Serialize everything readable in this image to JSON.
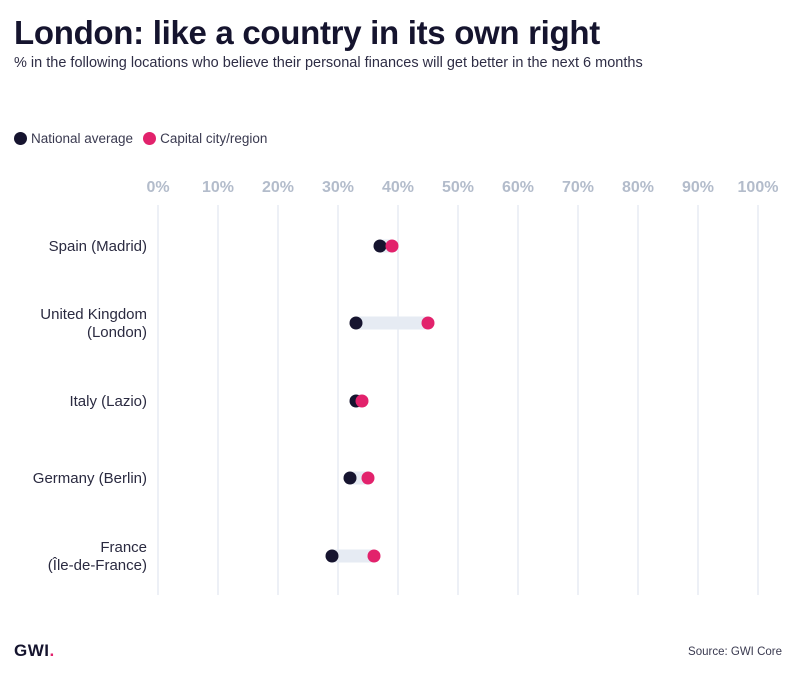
{
  "header": {
    "title": "London: like a country in its own right",
    "subtitle": "% in the following locations who believe their personal finances will get better in the next 6 months"
  },
  "footer": {
    "logo_text": "GWI",
    "logo_dot": ".",
    "source": "Source: GWI Core"
  },
  "colors": {
    "national": "#16142f",
    "capital": "#e2226c",
    "connector": "#e6ebf3",
    "gridline": "#dbe2ec",
    "tick_label": "#b3bccb"
  },
  "chart_data": {
    "type": "dot-plot",
    "title": "London: like a country in its own right",
    "subtitle": "% in the following locations who believe their personal finances will get better in the next 6 months",
    "x_ticks": [
      "0%",
      "10%",
      "20%",
      "30%",
      "40%",
      "50%",
      "60%",
      "70%",
      "80%",
      "90%",
      "100%"
    ],
    "xlim": [
      0,
      100
    ],
    "grid": true,
    "legend_position": "top-left",
    "legend": [
      {
        "name": "National average",
        "color": "#16142f"
      },
      {
        "name": "Capital city/region",
        "color": "#e2226c"
      }
    ],
    "categories": [
      {
        "label": [
          "Spain (Madrid)"
        ],
        "national": 37,
        "capital": 39
      },
      {
        "label": [
          "United Kingdom",
          "(London)"
        ],
        "national": 33,
        "capital": 45
      },
      {
        "label": [
          "Italy (Lazio)"
        ],
        "national": 33,
        "capital": 34
      },
      {
        "label": [
          "Germany (Berlin)"
        ],
        "national": 32,
        "capital": 35
      },
      {
        "label": [
          "France",
          "(Île-de-France)"
        ],
        "national": 29,
        "capital": 36
      }
    ]
  }
}
